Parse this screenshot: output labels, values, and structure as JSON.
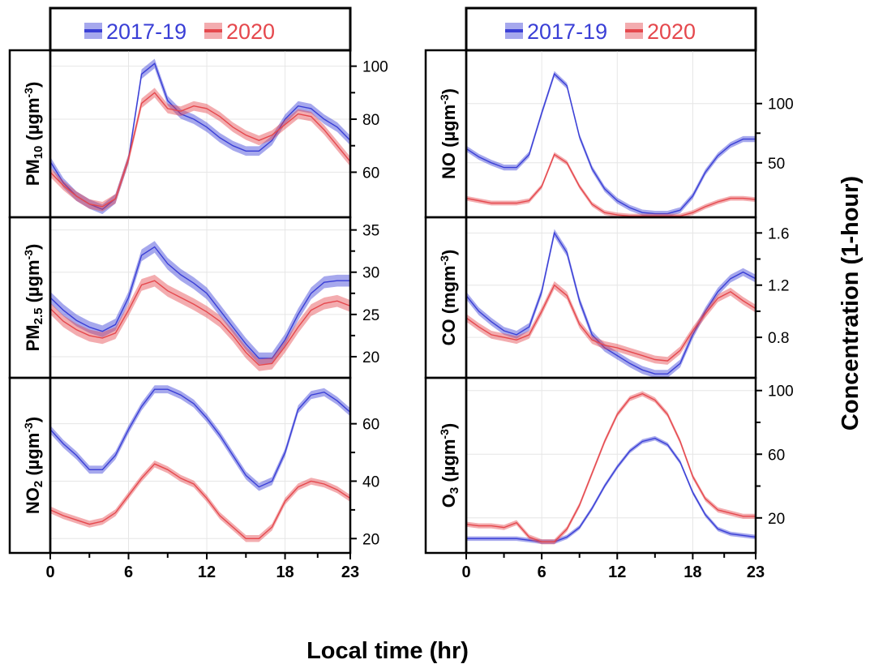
{
  "xlabel": "Local time (hr)",
  "ylabel_right": "Concentration (1-hour)",
  "legend": [
    {
      "label": "2017-19",
      "color": "#3a3fd6"
    },
    {
      "label": "2020",
      "color": "#e5484d"
    }
  ],
  "x_ticks": [
    "0",
    "6",
    "12",
    "18",
    "23"
  ],
  "chart_data": [
    {
      "type": "line",
      "panel": "left-top",
      "ylabel_main": "PM",
      "ylabel_sub": "10",
      "ylabel_unit": " (µgm",
      "ylabel_sup": "-3",
      "ylabel_end": ")",
      "ylim": [
        43,
        106
      ],
      "yticks": [
        60,
        80,
        100
      ],
      "x": [
        0,
        1,
        2,
        3,
        4,
        5,
        6,
        7,
        8,
        9,
        10,
        11,
        12,
        13,
        14,
        15,
        16,
        17,
        18,
        19,
        20,
        21,
        22,
        23
      ],
      "series": [
        {
          "name": "2017-19",
          "band": 1.8,
          "values": [
            64,
            56,
            51,
            48,
            46,
            50,
            65,
            97,
            101,
            87,
            82,
            80,
            77,
            73,
            70,
            68,
            68,
            72,
            80,
            85,
            84,
            80,
            77,
            72
          ]
        },
        {
          "name": "2020",
          "band": 1.8,
          "values": [
            60,
            55,
            51,
            48,
            47,
            50,
            65,
            86,
            90,
            84,
            83,
            85,
            84,
            81,
            77,
            74,
            72,
            74,
            78,
            82,
            81,
            76,
            70,
            64
          ]
        }
      ]
    },
    {
      "type": "line",
      "panel": "left-mid",
      "ylabel_main": "PM",
      "ylabel_sub": "2.5",
      "ylabel_unit": " (µgm",
      "ylabel_sup": "-3",
      "ylabel_end": ")",
      "ylim": [
        17.5,
        36.5
      ],
      "yticks": [
        20,
        25,
        30,
        35
      ],
      "x": [
        0,
        1,
        2,
        3,
        4,
        5,
        6,
        7,
        8,
        9,
        10,
        11,
        12,
        13,
        14,
        15,
        16,
        17,
        18,
        19,
        20,
        21,
        22,
        23
      ],
      "series": [
        {
          "name": "2017-19",
          "band": 0.7,
          "values": [
            27,
            25.5,
            24.3,
            23.5,
            23,
            23.8,
            27,
            32,
            33,
            31,
            29.7,
            28.7,
            27.5,
            25.5,
            23.5,
            21.5,
            19.8,
            19.8,
            22,
            25,
            27.5,
            28.8,
            29,
            29
          ]
        },
        {
          "name": "2020",
          "band": 0.7,
          "values": [
            25.7,
            24.2,
            23.2,
            22.5,
            22.2,
            22.8,
            25.5,
            28.5,
            29,
            27.8,
            27,
            26.2,
            25.3,
            24.2,
            22.5,
            20.5,
            19,
            19.2,
            21.2,
            23.5,
            25.5,
            26.3,
            26.6,
            26
          ]
        }
      ]
    },
    {
      "type": "line",
      "panel": "left-bottom",
      "ylabel_main": "NO",
      "ylabel_sub": "2",
      "ylabel_unit": " (µgm",
      "ylabel_sup": "-3",
      "ylabel_end": ")",
      "ylim": [
        15,
        76
      ],
      "yticks": [
        20,
        40,
        60
      ],
      "x": [
        0,
        1,
        2,
        3,
        4,
        5,
        6,
        7,
        8,
        9,
        10,
        11,
        12,
        13,
        14,
        15,
        16,
        17,
        18,
        19,
        20,
        21,
        22,
        23
      ],
      "series": [
        {
          "name": "2017-19",
          "band": 1.4,
          "values": [
            58,
            53,
            49,
            44,
            44,
            49,
            58,
            66,
            72,
            72,
            70,
            67,
            62,
            56,
            49,
            42,
            38,
            40,
            50,
            65,
            70,
            71,
            68,
            64
          ]
        },
        {
          "name": "2020",
          "band": 1.2,
          "values": [
            30,
            28,
            26.5,
            25,
            26,
            29,
            35,
            41,
            46,
            44,
            41,
            39,
            34,
            28,
            24,
            20,
            20,
            24,
            33,
            38,
            40,
            39,
            37,
            34
          ]
        }
      ]
    },
    {
      "type": "line",
      "panel": "right-top",
      "ylabel_main": "NO",
      "ylabel_sub": "",
      "ylabel_unit": " (µgm",
      "ylabel_sup": "-3",
      "ylabel_end": ")",
      "ylim": [
        4,
        145
      ],
      "yticks": [
        50,
        100
      ],
      "x": [
        0,
        1,
        2,
        3,
        4,
        5,
        6,
        7,
        8,
        9,
        10,
        11,
        12,
        13,
        14,
        15,
        16,
        17,
        18,
        19,
        20,
        21,
        22,
        23
      ],
      "series": [
        {
          "name": "2017-19",
          "band": 2.5,
          "values": [
            62,
            55,
            50,
            46,
            46,
            57,
            92,
            125,
            115,
            72,
            45,
            28,
            18,
            12,
            8,
            7,
            7,
            10,
            22,
            42,
            56,
            65,
            70,
            70
          ]
        },
        {
          "name": "2020",
          "band": 2.0,
          "values": [
            20,
            18,
            16,
            16,
            16,
            18,
            30,
            57,
            50,
            30,
            15,
            8,
            6,
            5,
            5,
            5,
            5,
            5,
            8,
            13,
            17,
            20,
            20,
            19
          ]
        }
      ]
    },
    {
      "type": "line",
      "panel": "right-mid",
      "ylabel_main": "CO",
      "ylabel_sub": "",
      "ylabel_unit": " (mgm",
      "ylabel_sup": "-3",
      "ylabel_end": ")",
      "ylim": [
        0.49,
        1.72
      ],
      "yticks": [
        0.8,
        1.2,
        1.6
      ],
      "x": [
        0,
        1,
        2,
        3,
        4,
        5,
        6,
        7,
        8,
        9,
        10,
        11,
        12,
        13,
        14,
        15,
        16,
        17,
        18,
        19,
        20,
        21,
        22,
        23
      ],
      "series": [
        {
          "name": "2017-19",
          "band": 0.03,
          "values": [
            1.12,
            1.0,
            0.92,
            0.85,
            0.82,
            0.88,
            1.15,
            1.6,
            1.45,
            1.08,
            0.82,
            0.72,
            0.66,
            0.6,
            0.55,
            0.52,
            0.52,
            0.6,
            0.82,
            1.0,
            1.15,
            1.25,
            1.3,
            1.25
          ]
        },
        {
          "name": "2020",
          "band": 0.03,
          "values": [
            0.95,
            0.88,
            0.82,
            0.8,
            0.78,
            0.82,
            1.0,
            1.2,
            1.12,
            0.9,
            0.78,
            0.74,
            0.72,
            0.69,
            0.66,
            0.63,
            0.62,
            0.7,
            0.85,
            0.98,
            1.1,
            1.15,
            1.08,
            1.02
          ]
        }
      ]
    },
    {
      "type": "line",
      "panel": "right-bottom",
      "ylabel_main": "O",
      "ylabel_sub": "3",
      "ylabel_unit": " (µgm",
      "ylabel_sup": "-3",
      "ylabel_end": ")",
      "ylim": [
        -2,
        108
      ],
      "yticks": [
        20,
        60,
        100
      ],
      "x": [
        0,
        1,
        2,
        3,
        4,
        5,
        6,
        7,
        8,
        9,
        10,
        11,
        12,
        13,
        14,
        15,
        16,
        17,
        18,
        19,
        20,
        21,
        22,
        23
      ],
      "series": [
        {
          "name": "2017-19",
          "band": 1.4,
          "values": [
            7,
            7,
            7,
            7,
            7,
            6,
            5,
            5,
            8,
            14,
            26,
            40,
            52,
            62,
            68,
            70,
            66,
            55,
            36,
            22,
            13,
            10,
            9,
            8
          ]
        },
        {
          "name": "2020",
          "band": 1.6,
          "values": [
            16,
            15,
            15,
            14,
            17,
            8,
            5,
            5,
            13,
            28,
            48,
            68,
            85,
            95,
            98,
            94,
            85,
            68,
            46,
            32,
            25,
            23,
            21,
            21
          ]
        }
      ]
    }
  ]
}
